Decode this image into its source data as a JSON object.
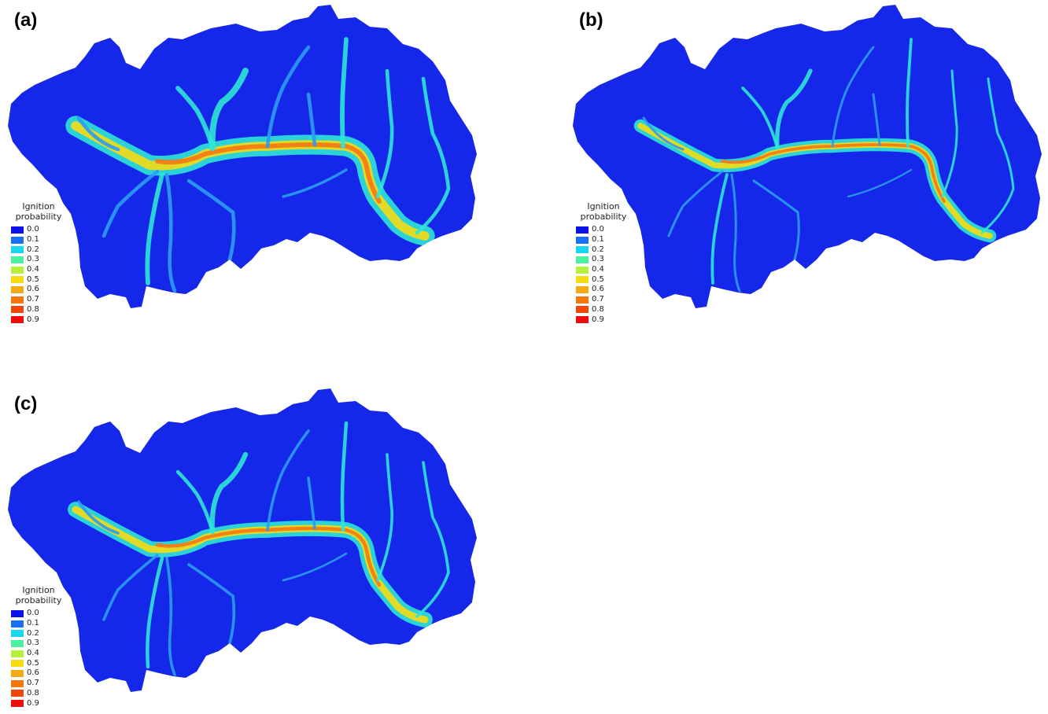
{
  "panels": [
    {
      "id": "a",
      "label": "(a)"
    },
    {
      "id": "b",
      "label": "(b)"
    },
    {
      "id": "c",
      "label": "(c)"
    }
  ],
  "legend": {
    "title_line1": "Ignition",
    "title_line2": "probability",
    "items": [
      {
        "label": "0.0",
        "color": "#0a14e6"
      },
      {
        "label": "0.1",
        "color": "#1a6ff2"
      },
      {
        "label": "0.2",
        "color": "#19d7f0"
      },
      {
        "label": "0.3",
        "color": "#4df0a0"
      },
      {
        "label": "0.4",
        "color": "#b4f03c"
      },
      {
        "label": "0.5",
        "color": "#f5dc14"
      },
      {
        "label": "0.6",
        "color": "#f5aa14"
      },
      {
        "label": "0.7",
        "color": "#f5780f"
      },
      {
        "label": "0.8",
        "color": "#f0460a"
      },
      {
        "label": "0.9",
        "color": "#f00a0a"
      }
    ]
  },
  "colors": {
    "background_blue": "#1528ea",
    "low": "#2a9cf2",
    "mid": "#2ee6d6",
    "mid_high": "#f5dc14",
    "high": "#f57814"
  }
}
